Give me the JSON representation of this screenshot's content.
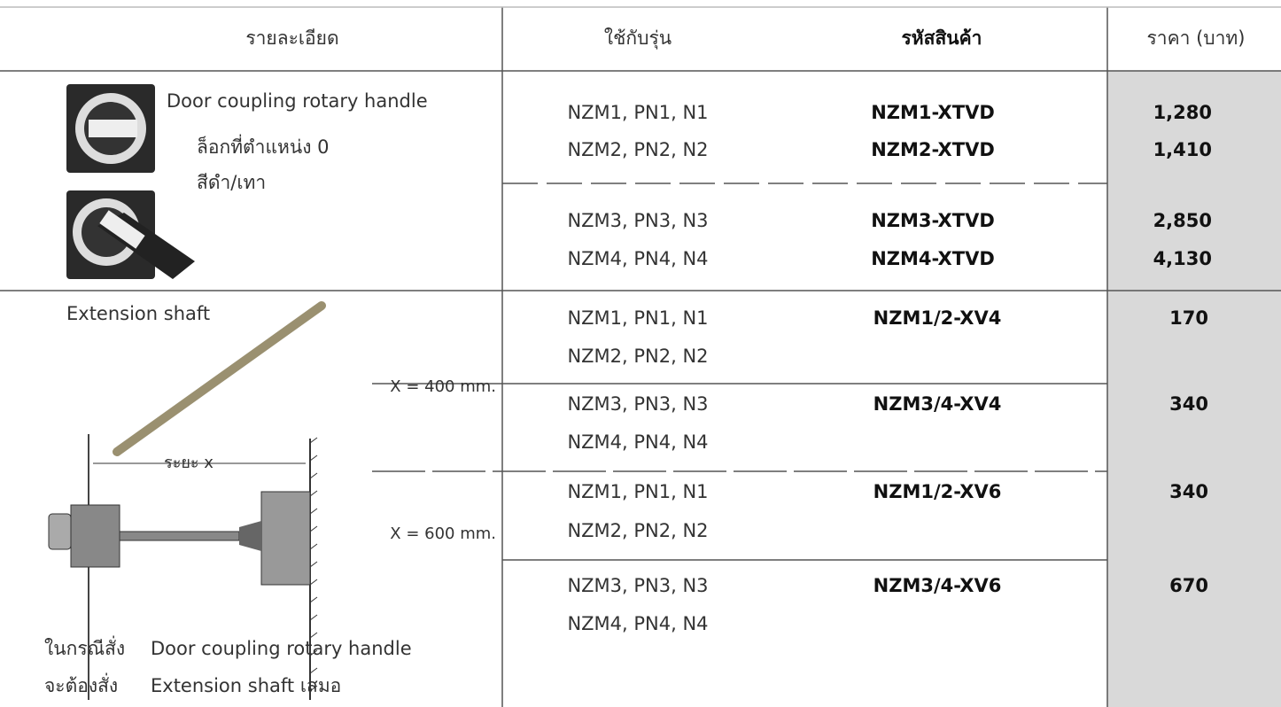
{
  "table": {
    "header": [
      "รายละเอียด",
      "ใช้กับรุ่น",
      "รหัสสินค้า",
      "ราคา (บาท)"
    ],
    "groups": [
      {
        "description": [
          "Door coupling rotary handle",
          "ล็อกที่ตำแหน่ง 0",
          "สีดำ/เทา"
        ],
        "rows": [
          {
            "models": [
              "NZM1, PN1, N1",
              "NZM2, PN2, N2"
            ],
            "codes": [
              "NZM1-XTVD",
              "NZM2-XTVD"
            ],
            "prices": [
              "1,280",
              "1,410"
            ]
          },
          {
            "models": [
              "NZM3, PN3, N3",
              "NZM4, PN4, N4"
            ],
            "codes": [
              "NZM3-XTVD",
              "NZM4-XTVD"
            ],
            "prices": [
              "2,850",
              "4,130"
            ]
          }
        ]
      },
      {
        "description": [
          "Extension shaft"
        ],
        "distance_label": "ระยะ x",
        "lengths": [
          "X = 400 mm.",
          "X = 600 mm."
        ],
        "note": [
          [
            "ในกรณีสั่ง",
            "Door coupling rotary handle"
          ],
          [
            "จะต้องสั่ง",
            "Extension shaft  เสมอ"
          ]
        ],
        "rows": [
          {
            "models": [
              "NZM1, PN1, N1",
              "NZM2, PN2, N2"
            ],
            "codes": [
              "NZM1/2-XV4"
            ],
            "prices": [
              "170"
            ]
          },
          {
            "models": [
              "NZM3, PN3, N3",
              "NZM4, PN4, N4"
            ],
            "codes": [
              "NZM3/4-XV4"
            ],
            "prices": [
              "340"
            ]
          },
          {
            "models": [
              "NZM1, PN1, N1",
              "NZM2, PN2, N2"
            ],
            "codes": [
              "NZM1/2-XV6"
            ],
            "prices": [
              "340"
            ]
          },
          {
            "models": [
              "NZM3, PN3, N3",
              "NZM4, PN4, N4"
            ],
            "codes": [
              "NZM3/4-XV6"
            ],
            "prices": [
              "670"
            ]
          }
        ]
      }
    ]
  }
}
